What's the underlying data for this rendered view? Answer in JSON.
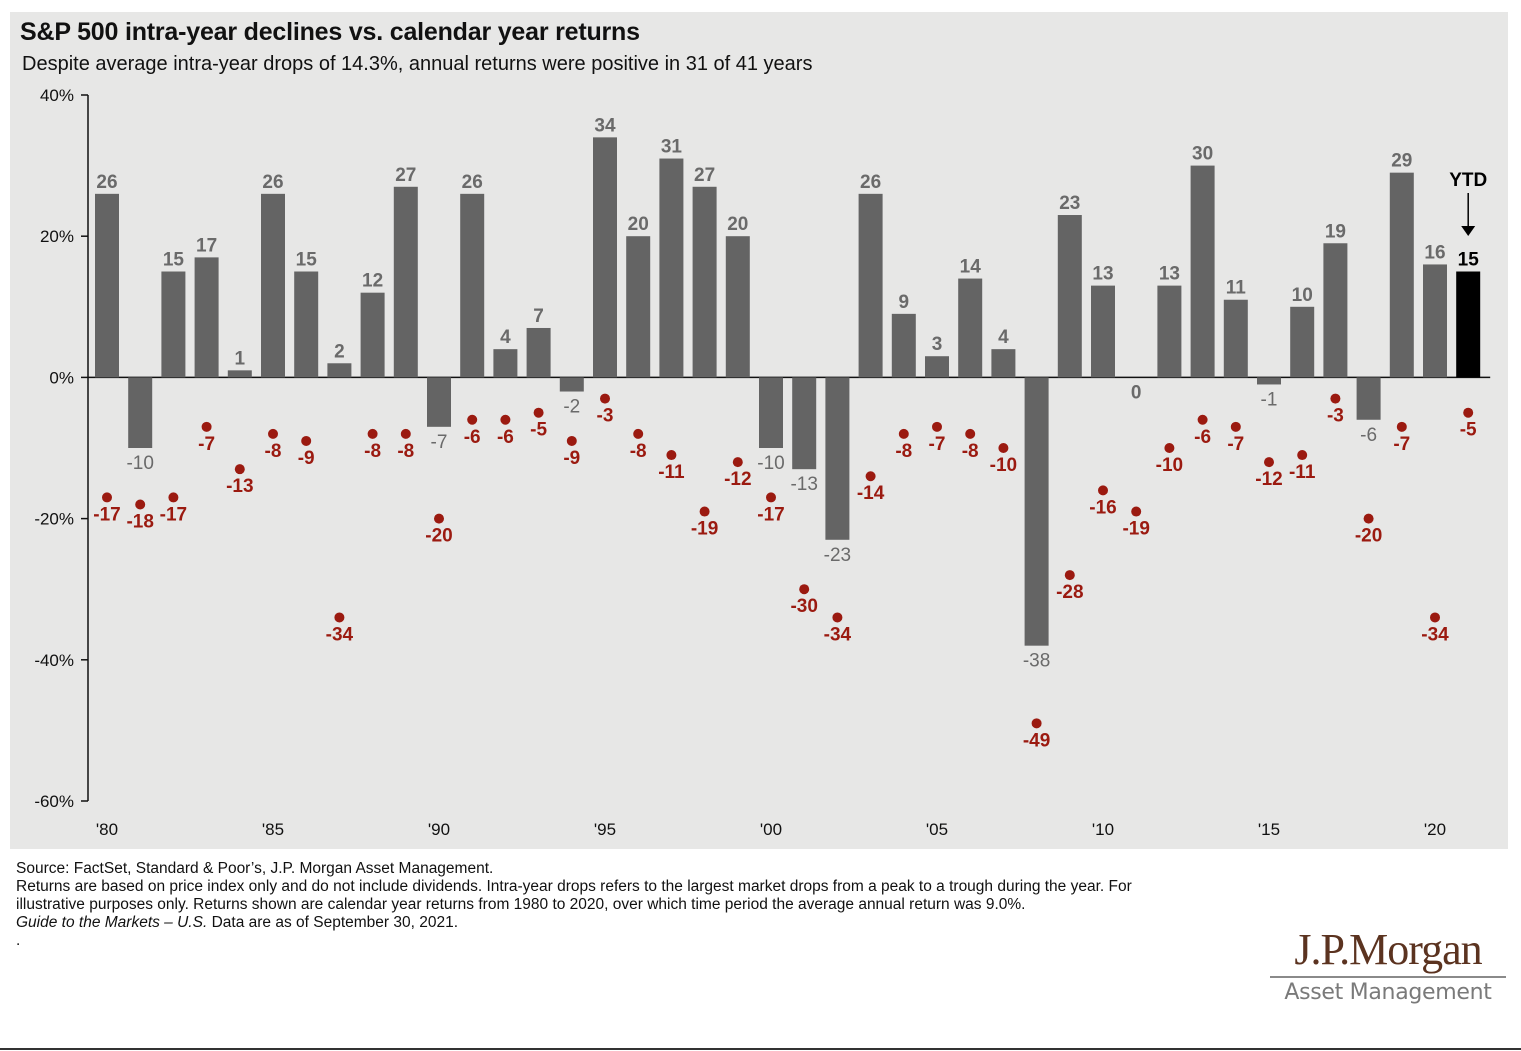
{
  "header": {
    "title": "S&P 500 intra-year declines vs. calendar year returns",
    "subtitle": "Despite average intra-year drops of 14.3%, annual returns were positive in 31 of 41 years"
  },
  "chart_data": {
    "type": "bar",
    "title": "S&P 500 intra-year declines vs. calendar year returns",
    "subtitle": "Despite average intra-year drops of 14.3%, annual returns were positive in 31 of 41 years",
    "xlabel": "",
    "ylabel": "",
    "ylim": [
      -60,
      40
    ],
    "yticks": [
      40,
      20,
      0,
      -20,
      -40,
      -60
    ],
    "ytick_labels": [
      "40%",
      "20%",
      "0%",
      "-20%",
      "-40%",
      "-60%"
    ],
    "grid": false,
    "categories": [
      "1980",
      "1981",
      "1982",
      "1983",
      "1984",
      "1985",
      "1986",
      "1987",
      "1988",
      "1989",
      "1990",
      "1991",
      "1992",
      "1993",
      "1994",
      "1995",
      "1996",
      "1997",
      "1998",
      "1999",
      "2000",
      "2001",
      "2002",
      "2003",
      "2004",
      "2005",
      "2006",
      "2007",
      "2008",
      "2009",
      "2010",
      "2011",
      "2012",
      "2013",
      "2014",
      "2015",
      "2016",
      "2017",
      "2018",
      "2019",
      "2020",
      "2021 YTD"
    ],
    "xtick_labels": [
      {
        "index": 0,
        "label": "'80"
      },
      {
        "index": 5,
        "label": "'85"
      },
      {
        "index": 10,
        "label": "'90"
      },
      {
        "index": 15,
        "label": "'95"
      },
      {
        "index": 20,
        "label": "'00"
      },
      {
        "index": 25,
        "label": "'05"
      },
      {
        "index": 30,
        "label": "'10"
      },
      {
        "index": 35,
        "label": "'15"
      },
      {
        "index": 40,
        "label": "'20"
      }
    ],
    "series": [
      {
        "name": "Calendar year return",
        "type": "bar",
        "color": "#646464",
        "values": [
          26,
          -10,
          15,
          17,
          1,
          26,
          15,
          2,
          12,
          27,
          -7,
          26,
          4,
          7,
          -2,
          34,
          20,
          31,
          27,
          20,
          -10,
          -13,
          -23,
          26,
          9,
          3,
          14,
          4,
          -38,
          23,
          13,
          0,
          13,
          30,
          11,
          -1,
          10,
          19,
          -6,
          29,
          16,
          15
        ]
      },
      {
        "name": "Intra-year decline",
        "type": "scatter",
        "color": "#9b1a10",
        "values": [
          -17,
          -18,
          -17,
          -7,
          -13,
          -8,
          -9,
          -34,
          -8,
          -8,
          -20,
          -6,
          -6,
          -5,
          -9,
          -3,
          -8,
          -11,
          -19,
          -12,
          -17,
          -30,
          -34,
          -14,
          -8,
          -7,
          -8,
          -10,
          -49,
          -28,
          -16,
          -19,
          -10,
          -6,
          -7,
          -12,
          -11,
          -3,
          -20,
          -7,
          -34,
          -5
        ]
      }
    ],
    "highlight": {
      "index": 41,
      "label": "YTD",
      "color": "#000000"
    },
    "annotations": [
      {
        "text": "YTD",
        "target": "2021 YTD",
        "arrow": "down"
      }
    ]
  },
  "footnotes": {
    "source": "Source: FactSet, Standard & Poor’s, J.P. Morgan Asset Management.",
    "note": "Returns are based on price index only and do not include dividends. Intra-year drops refers to the largest market drops from a peak to a trough during the year. For illustrative purposes only. Returns shown are calendar year returns from 1980 to 2020, over which time period the average annual return was 9.0%.",
    "guide_italic": "Guide to the Markets – U.S.",
    "guide_rest": " Data are as of September 30, 2021.",
    "trailing": "."
  },
  "logo": {
    "main": "J.P.Morgan",
    "sub": "Asset Management"
  }
}
